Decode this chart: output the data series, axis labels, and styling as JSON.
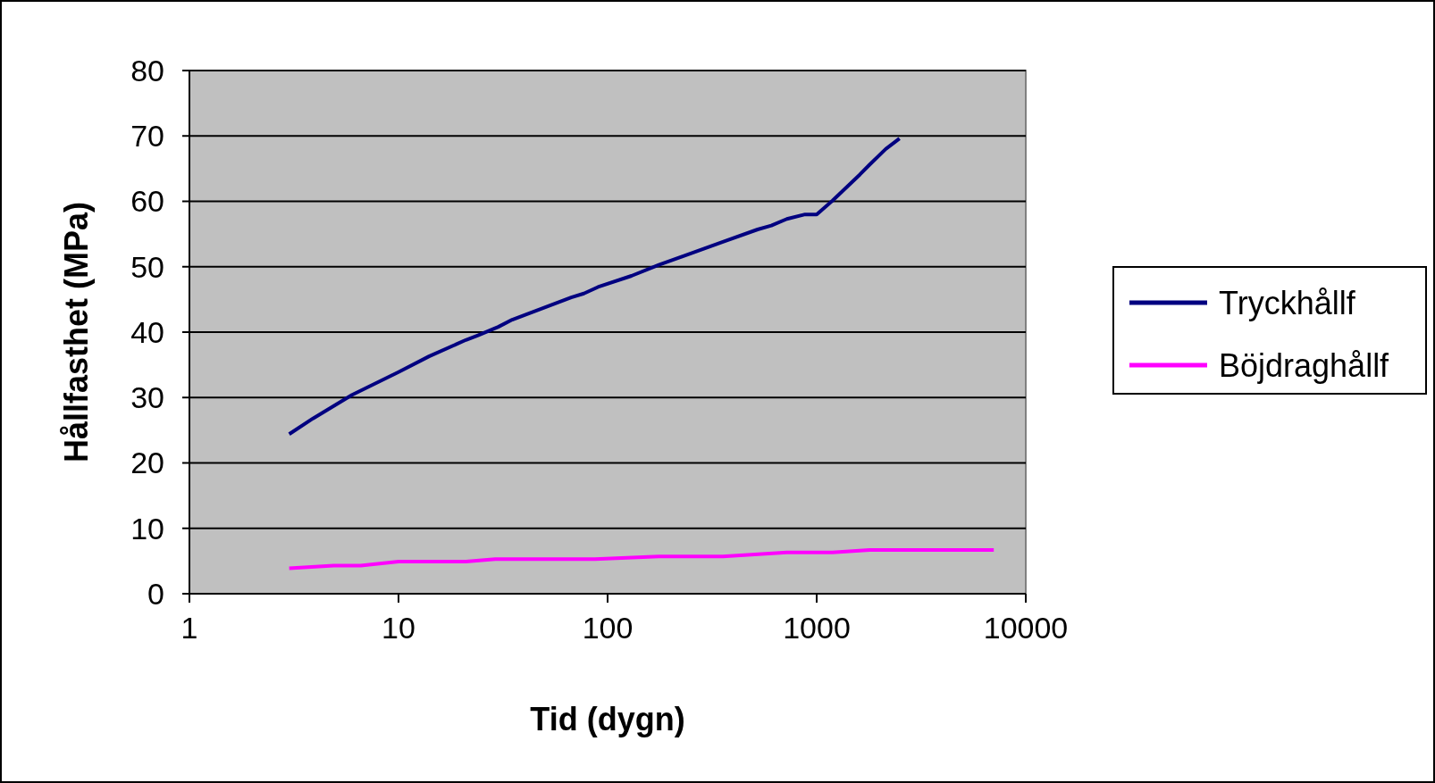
{
  "chart_data": {
    "type": "line",
    "xlabel": "Tid (dygn)",
    "ylabel": "Hållfasthet (MPa)",
    "log": "x",
    "xlim": [
      1,
      10000
    ],
    "xticks": [
      1,
      10,
      100,
      1000,
      10000
    ],
    "ylim": [
      0,
      80
    ],
    "yticks": [
      0,
      10,
      20,
      30,
      40,
      50,
      60,
      70,
      80
    ],
    "grid": "y",
    "legend": "right",
    "marker": "none",
    "line_style": "solid",
    "series": [
      {
        "name": "Tryckhållf",
        "color": "#000080",
        "x": [
          3,
          3.9,
          6,
          10,
          14,
          21,
          24,
          30,
          35,
          67,
          77,
          90,
          130,
          176,
          356,
          522,
          607,
          720,
          880,
          1000,
          1190,
          1610,
          1790,
          2140,
          2490
        ],
        "values": [
          24.4,
          26.8,
          30.4,
          33.9,
          36.3,
          38.8,
          39.5,
          40.8,
          41.9,
          45.3,
          45.9,
          46.9,
          48.6,
          50.3,
          53.8,
          55.7,
          56.3,
          57.3,
          58,
          58,
          60.1,
          64.1,
          65.6,
          68,
          69.6
        ]
      },
      {
        "name": "Böjdraghållf",
        "color": "#ff00ff",
        "x": [
          3,
          4.9,
          6.6,
          10,
          21,
          29,
          87,
          176,
          356,
          720,
          1190,
          1790,
          7030
        ],
        "values": [
          3.9,
          4.3,
          4.3,
          4.9,
          4.9,
          5.3,
          5.3,
          5.7,
          5.7,
          6.3,
          6.3,
          6.7,
          6.7
        ]
      }
    ]
  }
}
